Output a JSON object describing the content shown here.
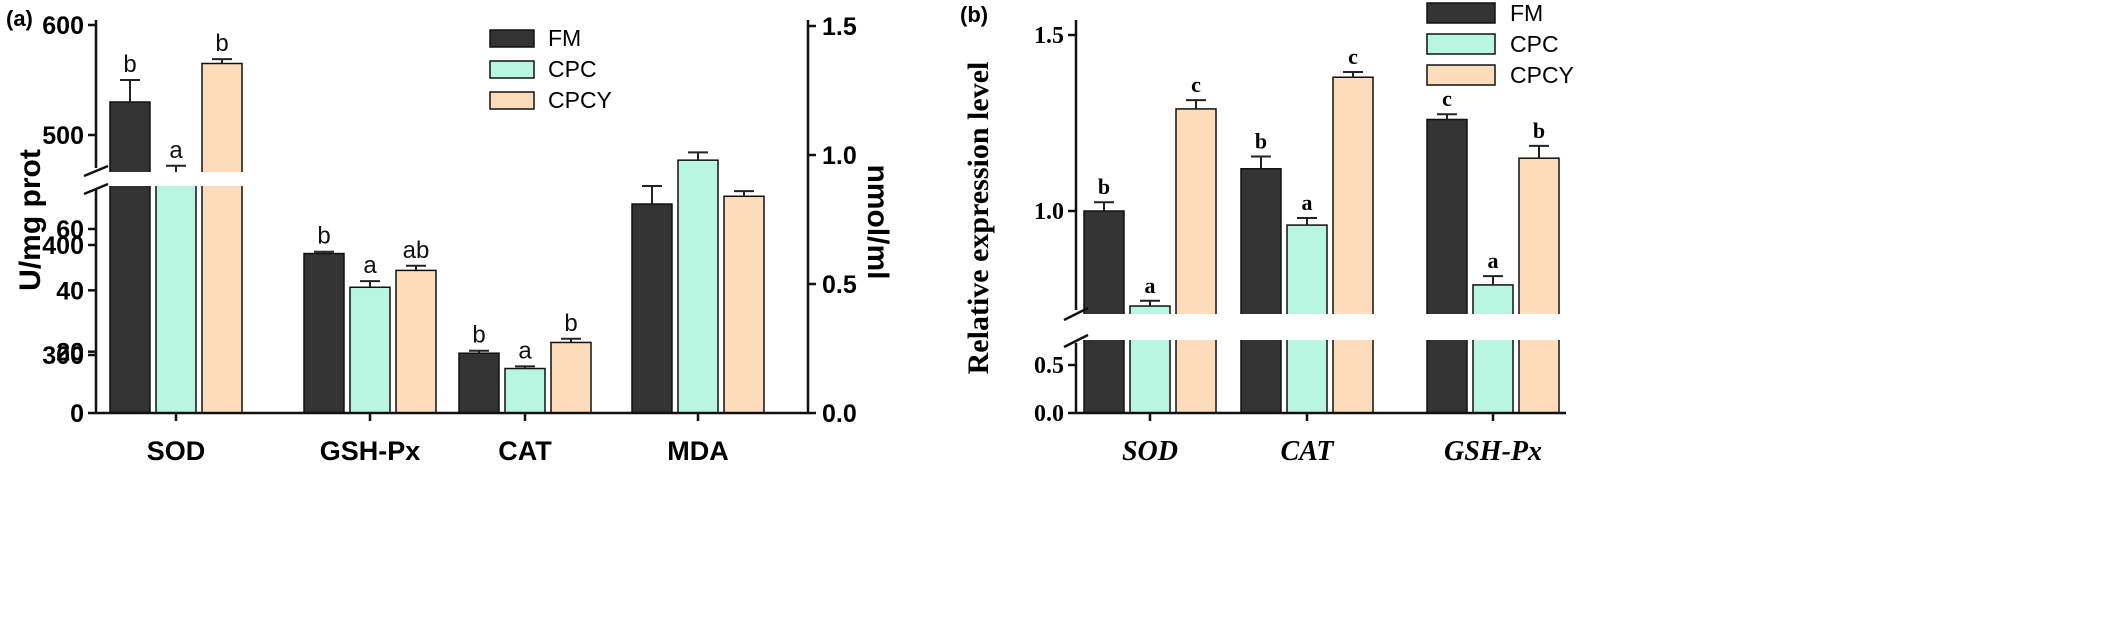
{
  "colors": {
    "FM": "#333333",
    "CPC": "#b9f6e1",
    "CPCY": "#fddcbc",
    "outline": "#111111"
  },
  "chart_data": [
    {
      "panel_label": "(a)",
      "type": "bar",
      "categories": [
        "SOD",
        "GSH-Px",
        "CAT",
        "MDA"
      ],
      "ylabel": "U/mg prot",
      "ylabel_right": "nmol/ml",
      "y_left_ticks": [
        "0",
        "20",
        "40",
        "60",
        "300",
        "400",
        "500",
        "600"
      ],
      "y_right_ticks": [
        "0.0",
        "0.5",
        "1.0",
        "1.5"
      ],
      "axis_break": {
        "lower_top": 70,
        "upper_bottom": 300
      },
      "ylim_right": [
        0,
        1.5
      ],
      "legend_position": "top-center",
      "series": [
        {
          "name": "FM",
          "color_key": "FM",
          "values": [
            530,
            52,
            19.5,
            0.81
          ],
          "errors": [
            20,
            0.6,
            0.8,
            0.07
          ],
          "letters": [
            "b",
            "b",
            "b",
            ""
          ]
        },
        {
          "name": "CPC",
          "color_key": "CPC",
          "values": [
            457,
            41,
            14.5,
            0.98
          ],
          "errors": [
            15,
            2,
            0.7,
            0.03
          ],
          "letters": [
            "a",
            "a",
            "a",
            ""
          ]
        },
        {
          "name": "CPCY",
          "color_key": "CPCY",
          "values": [
            565,
            46.5,
            23,
            0.84
          ],
          "errors": [
            4,
            1.5,
            1.2,
            0.02
          ],
          "letters": [
            "b",
            "ab",
            "b",
            ""
          ]
        }
      ]
    },
    {
      "panel_label": "(b)",
      "type": "bar",
      "categories": [
        "SOD",
        "CAT",
        "GSH-Px"
      ],
      "ylabel": "Relative expression level",
      "y_ticks": [
        "0.0",
        "0.5",
        "1.0",
        "1.5"
      ],
      "axis_break": {
        "lower_top": 0.6,
        "upper_bottom": 0.7
      },
      "ylim": [
        0,
        1.5
      ],
      "legend_position": "top-center",
      "series": [
        {
          "name": "FM",
          "color_key": "FM",
          "values": [
            1.0,
            1.12,
            1.26
          ],
          "errors": [
            0.025,
            0.035,
            0.015
          ],
          "letters": [
            "b",
            "b",
            "c"
          ]
        },
        {
          "name": "CPC",
          "color_key": "CPC",
          "values": [
            0.73,
            0.96,
            0.79
          ],
          "errors": [
            0.015,
            0.02,
            0.025
          ],
          "letters": [
            "a",
            "a",
            "a"
          ]
        },
        {
          "name": "CPCY",
          "color_key": "CPCY",
          "values": [
            1.29,
            1.38,
            1.15
          ],
          "errors": [
            0.025,
            0.015,
            0.035
          ],
          "letters": [
            "c",
            "c",
            "b"
          ]
        }
      ]
    }
  ]
}
